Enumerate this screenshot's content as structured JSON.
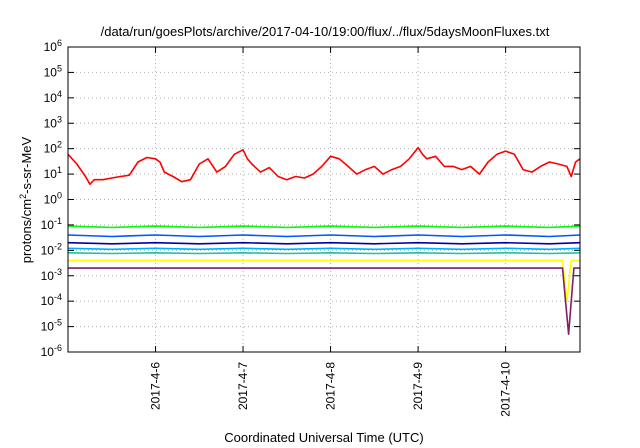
{
  "chart_data": {
    "type": "line",
    "title": "/data/run/goesPlots/archive/2017-04-10/19:00/flux/../flux/5daysMoonFluxes.txt",
    "xlabel": "Coordinated Universal Time (UTC)",
    "ylabel": {
      "pre": "protons/cm",
      "sup": "2",
      "post": "-s-sr-MeV"
    },
    "yscale": "log",
    "ylim": [
      1e-06,
      1000000.0
    ],
    "x_unit": "days since 2017-04-05 00:00 UTC",
    "xlim": [
      0.0,
      5.85
    ],
    "x_ticks": [
      {
        "x": 1,
        "label": "2017-4-6"
      },
      {
        "x": 2,
        "label": "2017-4-7"
      },
      {
        "x": 3,
        "label": "2017-4-8"
      },
      {
        "x": 4,
        "label": "2017-4-9"
      },
      {
        "x": 5,
        "label": "2017-4-10"
      }
    ],
    "y_ticks": [
      {
        "exp": -6,
        "label": "10",
        "sup": "-6"
      },
      {
        "exp": -5,
        "label": "10",
        "sup": "-5"
      },
      {
        "exp": -4,
        "label": "10",
        "sup": "-4"
      },
      {
        "exp": -3,
        "label": "10",
        "sup": "-3"
      },
      {
        "exp": -2,
        "label": "10",
        "sup": "-2"
      },
      {
        "exp": -1,
        "label": "10",
        "sup": "-1"
      },
      {
        "exp": 0,
        "label": "10",
        "sup": "0"
      },
      {
        "exp": 1,
        "label": "10",
        "sup": "1"
      },
      {
        "exp": 2,
        "label": "10",
        "sup": "2"
      },
      {
        "exp": 3,
        "label": "10",
        "sup": "3"
      },
      {
        "exp": 4,
        "label": "10",
        "sup": "4"
      },
      {
        "exp": 5,
        "label": "10",
        "sup": "5"
      },
      {
        "exp": 6,
        "label": "10",
        "sup": "6"
      }
    ],
    "grid": true,
    "legend": "none",
    "series": [
      {
        "color": "#ff0000",
        "x": [
          0.0,
          0.1,
          0.2,
          0.25,
          0.3,
          0.4,
          0.5,
          0.6,
          0.7,
          0.8,
          0.9,
          1.0,
          1.05,
          1.1,
          1.2,
          1.3,
          1.4,
          1.5,
          1.6,
          1.7,
          1.8,
          1.9,
          2.0,
          2.05,
          2.1,
          2.2,
          2.3,
          2.4,
          2.5,
          2.6,
          2.7,
          2.8,
          2.9,
          3.0,
          3.1,
          3.2,
          3.3,
          3.4,
          3.5,
          3.6,
          3.7,
          3.8,
          3.9,
          4.0,
          4.05,
          4.1,
          4.2,
          4.3,
          4.4,
          4.5,
          4.6,
          4.7,
          4.8,
          4.9,
          5.0,
          5.1,
          5.2,
          5.3,
          5.4,
          5.5,
          5.6,
          5.7,
          5.75,
          5.8,
          5.85
        ],
        "y": [
          60,
          25,
          8,
          4,
          6,
          6,
          7,
          8,
          9,
          30,
          45,
          40,
          30,
          12,
          8,
          5,
          6,
          25,
          40,
          12,
          20,
          60,
          90,
          40,
          25,
          12,
          18,
          8,
          6,
          8,
          7,
          10,
          20,
          50,
          40,
          20,
          10,
          15,
          20,
          10,
          15,
          20,
          40,
          110,
          60,
          40,
          50,
          20,
          20,
          15,
          20,
          10,
          30,
          60,
          80,
          60,
          15,
          12,
          20,
          30,
          25,
          20,
          8,
          30,
          40
        ]
      },
      {
        "color": "#00ff00",
        "x": [
          0.0,
          0.5,
          1.0,
          1.5,
          2.0,
          2.5,
          3.0,
          3.5,
          4.0,
          4.5,
          5.0,
          5.5,
          5.85
        ],
        "y": [
          0.09,
          0.08,
          0.09,
          0.08,
          0.09,
          0.08,
          0.09,
          0.08,
          0.09,
          0.08,
          0.09,
          0.08,
          0.09
        ]
      },
      {
        "color": "#0055ff",
        "x": [
          0.0,
          0.5,
          1.0,
          1.5,
          2.0,
          2.5,
          3.0,
          3.5,
          4.0,
          4.5,
          5.0,
          5.5,
          5.85
        ],
        "y": [
          0.04,
          0.035,
          0.04,
          0.035,
          0.04,
          0.035,
          0.04,
          0.035,
          0.04,
          0.035,
          0.04,
          0.035,
          0.04
        ]
      },
      {
        "color": "#0000aa",
        "x": [
          0.0,
          0.5,
          1.0,
          1.5,
          2.0,
          2.5,
          3.0,
          3.5,
          4.0,
          4.5,
          5.0,
          5.5,
          5.85
        ],
        "y": [
          0.02,
          0.018,
          0.02,
          0.018,
          0.02,
          0.018,
          0.02,
          0.018,
          0.02,
          0.018,
          0.02,
          0.018,
          0.02
        ]
      },
      {
        "color": "#00b0ff",
        "x": [
          0.0,
          0.5,
          1.0,
          1.5,
          2.0,
          2.5,
          3.0,
          3.5,
          4.0,
          4.5,
          5.0,
          5.5,
          5.85
        ],
        "y": [
          0.012,
          0.011,
          0.012,
          0.011,
          0.012,
          0.011,
          0.012,
          0.011,
          0.012,
          0.011,
          0.012,
          0.011,
          0.012
        ]
      },
      {
        "color": "#20c0a0",
        "x": [
          0.0,
          0.5,
          1.0,
          1.5,
          2.0,
          2.5,
          3.0,
          3.5,
          4.0,
          4.5,
          5.0,
          5.5,
          5.85
        ],
        "y": [
          0.008,
          0.0075,
          0.008,
          0.0075,
          0.008,
          0.0075,
          0.008,
          0.0075,
          0.008,
          0.0075,
          0.008,
          0.0075,
          0.008
        ]
      },
      {
        "color": "#ffff00",
        "x": [
          0.0,
          0.5,
          1.0,
          1.5,
          2.0,
          2.5,
          3.0,
          3.5,
          4.0,
          4.5,
          5.0,
          5.5,
          5.65,
          5.7,
          5.75,
          5.85
        ],
        "y": [
          0.004,
          0.004,
          0.004,
          0.004,
          0.004,
          0.004,
          0.004,
          0.004,
          0.004,
          0.004,
          0.004,
          0.004,
          0.004,
          0.0001,
          0.004,
          0.004
        ]
      },
      {
        "color": "#802060",
        "x": [
          0.0,
          0.5,
          1.0,
          1.5,
          2.0,
          2.5,
          3.0,
          3.5,
          4.0,
          4.5,
          5.0,
          5.5,
          5.65,
          5.72,
          5.78,
          5.85
        ],
        "y": [
          0.002,
          0.002,
          0.002,
          0.002,
          0.002,
          0.002,
          0.002,
          0.002,
          0.002,
          0.002,
          0.002,
          0.002,
          0.002,
          5e-06,
          0.002,
          0.002
        ]
      }
    ]
  }
}
